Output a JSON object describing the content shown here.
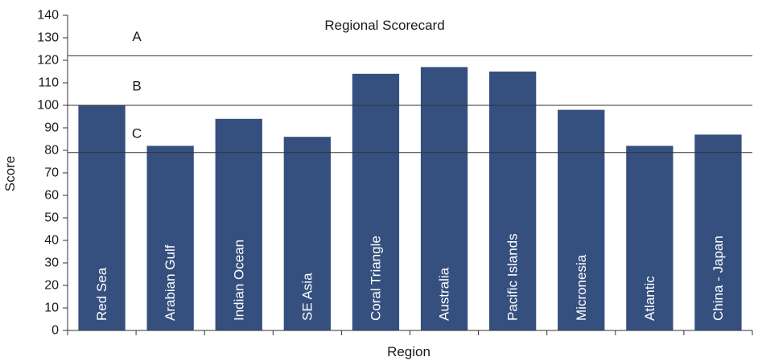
{
  "chart_data": {
    "type": "bar",
    "title": "Regional Scorecard",
    "xlabel": "Region",
    "ylabel": "Score",
    "ylim": [
      0,
      140
    ],
    "yticks": [
      0,
      10,
      20,
      30,
      40,
      50,
      60,
      70,
      80,
      90,
      100,
      110,
      120,
      130,
      140
    ],
    "grid": false,
    "legend": "none",
    "bar_color": "#35507f",
    "categories": [
      "Red Sea",
      "Arabian Gulf",
      "Indian Ocean",
      "SE Asia",
      "Coral Triangle",
      "Australia",
      "Pacific Islands",
      "Micronesia",
      "Atlantic",
      "China - Japan"
    ],
    "values": [
      100,
      82,
      94,
      86,
      114,
      117,
      115,
      98,
      82,
      87
    ],
    "thresholds": [
      {
        "grade": "A",
        "value": 122
      },
      {
        "grade": "B",
        "value": 100
      },
      {
        "grade": "C",
        "value": 79
      }
    ]
  }
}
